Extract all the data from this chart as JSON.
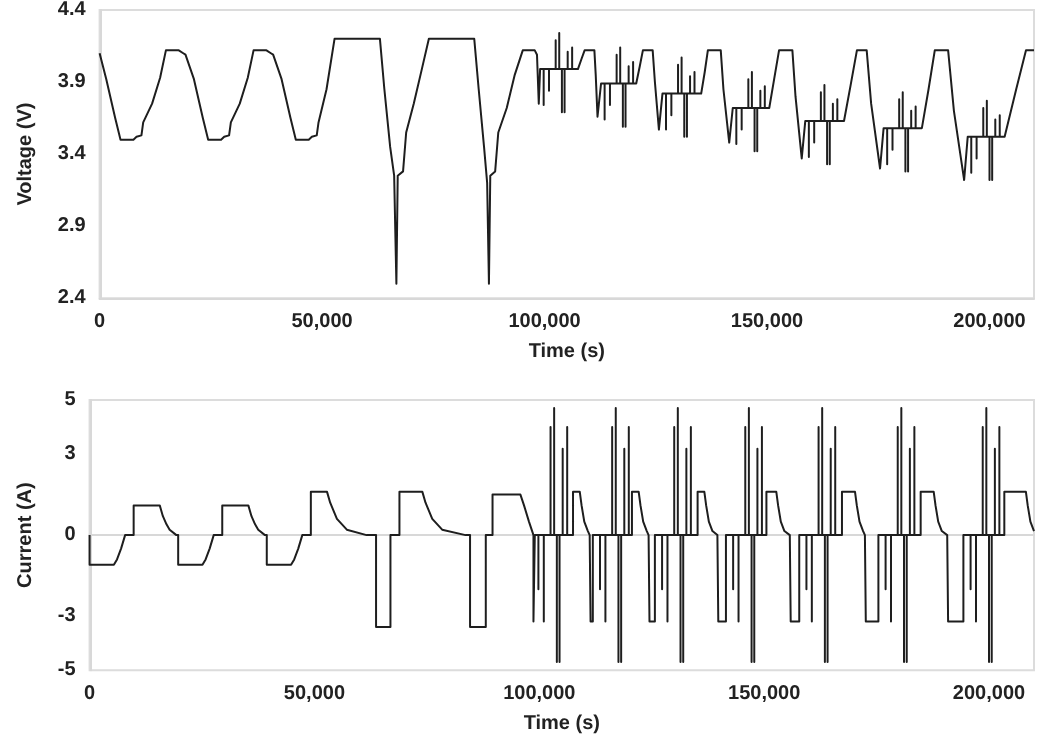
{
  "chart_data": [
    {
      "type": "line",
      "xlabel": "Time (s)",
      "ylabel": "Voltage (V)",
      "xlim": [
        0,
        210000
      ],
      "ylim": [
        2.4,
        4.4
      ],
      "xticks": [
        0,
        {
          "value": 50000,
          "label": "50,000"
        },
        {
          "value": 100000,
          "label": "100,000"
        },
        {
          "value": 150000,
          "label": "150,000"
        },
        {
          "value": 200000,
          "label": "200,000"
        }
      ],
      "yticks": [
        2.4,
        2.9,
        3.4,
        3.9,
        4.4
      ],
      "marker": "none",
      "series": [
        {
          "color": "#1e1e1e",
          "x": [
            0,
            1500,
            3500,
            4700,
            7600,
            8300,
            9400,
            9800,
            11800,
            13600,
            14900,
            17800,
            18800,
            19300,
            21200,
            23200,
            24400,
            27300,
            28000,
            29100,
            29500,
            31500,
            33300,
            34600,
            37500,
            38500,
            39000,
            40900,
            42900,
            44100,
            47000,
            47700,
            48800,
            49200,
            51000,
            52800,
            63000,
            64000,
            65300,
            66200,
            66700,
            67000,
            68200,
            68900,
            70600,
            72500,
            74000,
            84200,
            85200,
            86400,
            87100,
            87500,
            87800,
            88900,
            89600,
            91500,
            93300,
            95100,
            97800,
            98300,
            98700,
            99000,
            99800,
            99800,
            99800,
            101000,
            101000,
            101000,
            102500,
            102500,
            102500,
            103300,
            103300,
            103300,
            103900,
            103900,
            103900,
            104500,
            104500,
            104500,
            105200,
            105200,
            105200,
            106200,
            106200,
            106200,
            107500,
            108300,
            109000,
            111200,
            111500,
            111900,
            112700,
            113500,
            113500,
            113500,
            114700,
            114700,
            114700,
            116200,
            116200,
            116200,
            117000,
            117000,
            117000,
            117600,
            117600,
            117600,
            118200,
            118200,
            118200,
            118900,
            118900,
            118900,
            119900,
            119900,
            119900,
            120600,
            121400,
            122100,
            124300,
            124800,
            125700,
            126500,
            127300,
            127300,
            127300,
            128500,
            128500,
            128500,
            130000,
            130000,
            130000,
            130800,
            130800,
            130800,
            131400,
            131400,
            131400,
            132000,
            132000,
            132000,
            132700,
            132700,
            132700,
            133700,
            133700,
            133700,
            135200,
            136000,
            136700,
            139600,
            140200,
            141500,
            142300,
            143100,
            143100,
            143100,
            144300,
            144300,
            144300,
            145800,
            145800,
            145800,
            146600,
            146600,
            146600,
            147200,
            147200,
            147200,
            147800,
            147800,
            147800,
            148500,
            148500,
            148500,
            149500,
            149500,
            149500,
            150500,
            151600,
            152700,
            155700,
            156400,
            157800,
            158600,
            159400,
            159400,
            159400,
            160600,
            160600,
            160600,
            162100,
            162100,
            162100,
            162900,
            162900,
            162900,
            163500,
            163500,
            163500,
            164100,
            164100,
            164100,
            164800,
            164800,
            164800,
            165800,
            165800,
            165800,
            167300,
            168800,
            170200,
            172400,
            173400,
            175400,
            176200,
            177000,
            177000,
            177000,
            178200,
            178200,
            178200,
            179700,
            179700,
            179700,
            180500,
            180500,
            180500,
            181100,
            181100,
            181100,
            181700,
            181700,
            181700,
            182400,
            182400,
            182400,
            183400,
            183400,
            183400,
            184800,
            186300,
            187700,
            190700,
            192000,
            194300,
            195100,
            195900,
            195900,
            195900,
            197100,
            197100,
            197100,
            198600,
            198600,
            198600,
            199400,
            199400,
            199400,
            200000,
            200000,
            200000,
            200600,
            200600,
            200600,
            201300,
            201300,
            201300,
            202300,
            202300,
            202300,
            203400,
            206000,
            208200,
            210000
          ],
          "values": [
            4.1,
            3.92,
            3.65,
            3.5,
            3.5,
            3.52,
            3.53,
            3.62,
            3.75,
            3.93,
            4.12,
            4.12,
            4.1,
            4.09,
            3.92,
            3.65,
            3.5,
            3.5,
            3.52,
            3.53,
            3.62,
            3.75,
            3.93,
            4.12,
            4.12,
            4.1,
            4.09,
            3.92,
            3.65,
            3.5,
            3.5,
            3.52,
            3.53,
            3.62,
            3.85,
            4.2,
            4.2,
            3.85,
            3.45,
            3.25,
            2.5,
            3.25,
            3.28,
            3.55,
            3.75,
            4.0,
            4.2,
            4.2,
            3.85,
            3.45,
            3.2,
            2.5,
            3.25,
            3.28,
            3.55,
            3.72,
            3.95,
            4.12,
            4.12,
            4.09,
            3.75,
            3.99,
            3.99,
            3.74,
            3.99,
            3.99,
            3.84,
            3.99,
            3.99,
            4.19,
            3.99,
            3.99,
            4.24,
            3.99,
            3.99,
            3.69,
            3.99,
            3.99,
            3.69,
            3.99,
            3.99,
            4.11,
            3.99,
            3.99,
            4.14,
            3.99,
            3.99,
            4.06,
            4.12,
            4.12,
            3.95,
            3.66,
            3.89,
            3.89,
            3.64,
            3.89,
            3.89,
            3.74,
            3.89,
            3.89,
            4.09,
            3.89,
            3.89,
            4.14,
            3.89,
            3.89,
            3.59,
            3.89,
            3.89,
            3.59,
            3.89,
            3.89,
            4.01,
            3.89,
            3.89,
            4.04,
            3.89,
            3.89,
            4.01,
            4.12,
            4.12,
            3.9,
            3.57,
            3.82,
            3.82,
            3.57,
            3.82,
            3.82,
            3.67,
            3.82,
            3.82,
            4.02,
            3.82,
            3.82,
            4.07,
            3.82,
            3.82,
            3.52,
            3.82,
            3.82,
            3.52,
            3.82,
            3.82,
            3.94,
            3.82,
            3.82,
            3.97,
            3.82,
            3.82,
            3.97,
            4.12,
            4.12,
            3.85,
            3.48,
            3.72,
            3.72,
            3.47,
            3.72,
            3.72,
            3.57,
            3.72,
            3.72,
            3.92,
            3.72,
            3.72,
            3.97,
            3.72,
            3.72,
            3.42,
            3.72,
            3.72,
            3.42,
            3.72,
            3.72,
            3.84,
            3.72,
            3.72,
            3.87,
            3.72,
            3.72,
            3.92,
            4.12,
            4.12,
            3.8,
            3.37,
            3.63,
            3.63,
            3.38,
            3.63,
            3.63,
            3.48,
            3.63,
            3.63,
            3.83,
            3.63,
            3.63,
            3.88,
            3.63,
            3.63,
            3.33,
            3.63,
            3.63,
            3.33,
            3.63,
            3.63,
            3.75,
            3.63,
            3.63,
            3.78,
            3.63,
            3.63,
            3.88,
            4.12,
            4.12,
            3.75,
            3.3,
            3.58,
            3.58,
            3.33,
            3.58,
            3.58,
            3.43,
            3.58,
            3.58,
            3.78,
            3.58,
            3.58,
            3.83,
            3.58,
            3.58,
            3.28,
            3.58,
            3.58,
            3.28,
            3.58,
            3.58,
            3.7,
            3.58,
            3.58,
            3.73,
            3.58,
            3.58,
            3.85,
            4.12,
            4.12,
            3.7,
            3.22,
            3.52,
            3.52,
            3.27,
            3.52,
            3.52,
            3.37,
            3.52,
            3.52,
            3.72,
            3.52,
            3.52,
            3.77,
            3.52,
            3.52,
            3.22,
            3.52,
            3.52,
            3.22,
            3.52,
            3.52,
            3.64,
            3.52,
            3.52,
            3.67,
            3.52,
            3.52,
            3.85,
            4.12,
            4.12
          ]
        }
      ]
    },
    {
      "type": "line",
      "xlabel": "Time (s)",
      "ylabel": "Current (A)",
      "xlim": [
        0,
        210000
      ],
      "ylim": [
        -5,
        5
      ],
      "xticks": [
        0,
        {
          "value": 50000,
          "label": "50,000"
        },
        {
          "value": 100000,
          "label": "100,000"
        },
        {
          "value": 150000,
          "label": "150,000"
        },
        {
          "value": 200000,
          "label": "200,000"
        }
      ],
      "yticks": [
        -5,
        -3,
        0,
        3,
        5
      ],
      "marker": "none",
      "series": [
        {
          "color": "#1e1e1e",
          "x": [
            0,
            0,
            5400,
            6100,
            7000,
            7900,
            9800,
            9800,
            15600,
            16300,
            17100,
            17800,
            19300,
            19700,
            19700,
            25100,
            25800,
            26700,
            27600,
            29500,
            29500,
            35300,
            36000,
            36800,
            37500,
            39000,
            39400,
            39400,
            44800,
            45500,
            46400,
            47300,
            49200,
            49200,
            52800,
            53500,
            55000,
            57200,
            61600,
            63700,
            63700,
            66900,
            66900,
            68900,
            68900,
            74000,
            74700,
            76200,
            78400,
            83600,
            84600,
            84600,
            88100,
            88100,
            89600,
            89600,
            95800,
            96600,
            97700,
            98500,
            98700,
            98700,
            99000,
            99000,
            99800,
            99800,
            99800,
            101000,
            101000,
            101000,
            102500,
            102500,
            102500,
            103300,
            103300,
            103300,
            103900,
            103900,
            103900,
            104500,
            104500,
            104500,
            105200,
            105200,
            105200,
            106200,
            106200,
            106200,
            107500,
            107500,
            109000,
            109400,
            110000,
            110800,
            111200,
            111400,
            111400,
            111900,
            111900,
            113500,
            113500,
            113500,
            114700,
            114700,
            114700,
            116200,
            116200,
            116200,
            117000,
            117000,
            117000,
            117600,
            117600,
            117600,
            118200,
            118200,
            118200,
            118900,
            118900,
            118900,
            119900,
            119900,
            119900,
            120600,
            120600,
            122100,
            122500,
            123100,
            123900,
            124300,
            124500,
            124500,
            125700,
            125700,
            127300,
            127300,
            127300,
            128500,
            128500,
            128500,
            130000,
            130000,
            130000,
            130800,
            130800,
            130800,
            131400,
            131400,
            131400,
            132000,
            132000,
            132000,
            132700,
            132700,
            132700,
            133700,
            133700,
            133700,
            135200,
            135200,
            136700,
            137100,
            137700,
            138500,
            139600,
            139800,
            139800,
            141500,
            141500,
            143100,
            143100,
            143100,
            144300,
            144300,
            144300,
            145800,
            145800,
            145800,
            146600,
            146600,
            146600,
            147200,
            147200,
            147200,
            147800,
            147800,
            147800,
            148500,
            148500,
            148500,
            149500,
            149500,
            149500,
            150500,
            150500,
            152700,
            153100,
            153700,
            154500,
            155700,
            155900,
            155900,
            157800,
            157800,
            159400,
            159400,
            159400,
            160600,
            160600,
            160600,
            162100,
            162100,
            162100,
            162900,
            162900,
            162900,
            163500,
            163500,
            163500,
            164100,
            164100,
            164100,
            164800,
            164800,
            164800,
            165800,
            165800,
            165800,
            167300,
            167300,
            170200,
            170600,
            171200,
            172000,
            172400,
            172600,
            172600,
            175400,
            175400,
            177000,
            177000,
            177000,
            178200,
            178200,
            178200,
            179700,
            179700,
            179700,
            180500,
            180500,
            180500,
            181100,
            181100,
            181100,
            181700,
            181700,
            181700,
            182400,
            182400,
            182400,
            183400,
            183400,
            183400,
            184800,
            184800,
            187700,
            188100,
            188700,
            189500,
            190700,
            190900,
            190900,
            194300,
            194300,
            195900,
            195900,
            195900,
            197100,
            197100,
            197100,
            198600,
            198600,
            198600,
            199400,
            199400,
            199400,
            200000,
            200000,
            200000,
            200600,
            200600,
            200600,
            201300,
            201300,
            201300,
            202300,
            202300,
            202300,
            203400,
            203400,
            208200,
            208600,
            209200,
            210000
          ],
          "values": [
            0,
            -1.1,
            -1.1,
            -0.9,
            -0.5,
            0,
            0,
            1.1,
            1.1,
            0.7,
            0.4,
            0.2,
            0,
            0,
            -1.1,
            -1.1,
            -0.9,
            -0.5,
            0,
            0,
            1.1,
            1.1,
            0.7,
            0.4,
            0.2,
            0,
            0,
            -1.1,
            -1.1,
            -0.9,
            -0.5,
            0,
            0,
            1.6,
            1.6,
            1.2,
            0.6,
            0.2,
            0,
            0,
            -3.4,
            -3.4,
            0,
            0,
            1.6,
            1.6,
            1.2,
            0.6,
            0.2,
            0,
            0,
            -3.4,
            -3.4,
            0,
            0,
            1.5,
            1.5,
            1.1,
            0.5,
            0.1,
            0,
            -3.2,
            -3.2,
            0,
            0,
            -2.0,
            0,
            0,
            -3.2,
            0,
            0,
            4.0,
            0,
            0,
            4.7,
            0,
            0,
            -4.7,
            0,
            0,
            -4.7,
            0,
            0,
            3.2,
            0,
            0,
            4.0,
            0,
            0,
            1.6,
            1.6,
            1.1,
            0.5,
            0.15,
            0,
            0,
            -3.2,
            -3.2,
            0,
            0,
            -2.0,
            0,
            0,
            -3.2,
            0,
            0,
            4.0,
            0,
            0,
            4.7,
            0,
            0,
            -4.7,
            0,
            0,
            -4.7,
            0,
            0,
            3.2,
            0,
            0,
            4.0,
            0,
            0,
            1.6,
            1.6,
            1.1,
            0.5,
            0.15,
            0,
            0,
            -3.2,
            -3.2,
            0,
            0,
            -2.0,
            0,
            0,
            -3.2,
            0,
            0,
            4.0,
            0,
            0,
            4.7,
            0,
            0,
            -4.7,
            0,
            0,
            -4.7,
            0,
            0,
            3.2,
            0,
            0,
            4.0,
            0,
            0,
            1.6,
            1.6,
            1.1,
            0.5,
            0.15,
            0,
            0,
            -3.2,
            -3.2,
            0,
            0,
            -2.0,
            0,
            0,
            -3.2,
            0,
            0,
            4.0,
            0,
            0,
            4.7,
            0,
            0,
            -4.7,
            0,
            0,
            -4.7,
            0,
            0,
            3.2,
            0,
            0,
            4.0,
            0,
            0,
            1.6,
            1.6,
            1.1,
            0.5,
            0.15,
            0,
            0,
            -3.2,
            -3.2,
            0,
            0,
            -2.0,
            0,
            0,
            -3.2,
            0,
            0,
            4.0,
            0,
            0,
            4.7,
            0,
            0,
            -4.7,
            0,
            0,
            -4.7,
            0,
            0,
            3.2,
            0,
            0,
            4.0,
            0,
            0,
            1.6,
            1.6,
            1.1,
            0.5,
            0.15,
            0,
            0,
            -3.2,
            -3.2,
            0,
            0,
            -2.0,
            0,
            0,
            -3.2,
            0,
            0,
            4.0,
            0,
            0,
            4.7,
            0,
            0,
            -4.7,
            0,
            0,
            -4.7,
            0,
            0,
            3.2,
            0,
            0,
            4.0,
            0,
            0,
            1.6,
            1.6,
            1.1,
            0.5,
            0.15,
            0,
            0,
            -3.2,
            -3.2,
            0,
            0,
            -2.0,
            0,
            0,
            -3.2,
            0,
            0,
            4.0,
            0,
            0,
            4.7,
            0,
            0,
            -4.7,
            0,
            0,
            -4.7,
            0,
            0,
            3.2,
            0,
            0,
            4.0,
            0,
            0,
            1.6,
            1.6,
            1.1,
            0.5,
            0.15
          ]
        }
      ]
    }
  ]
}
